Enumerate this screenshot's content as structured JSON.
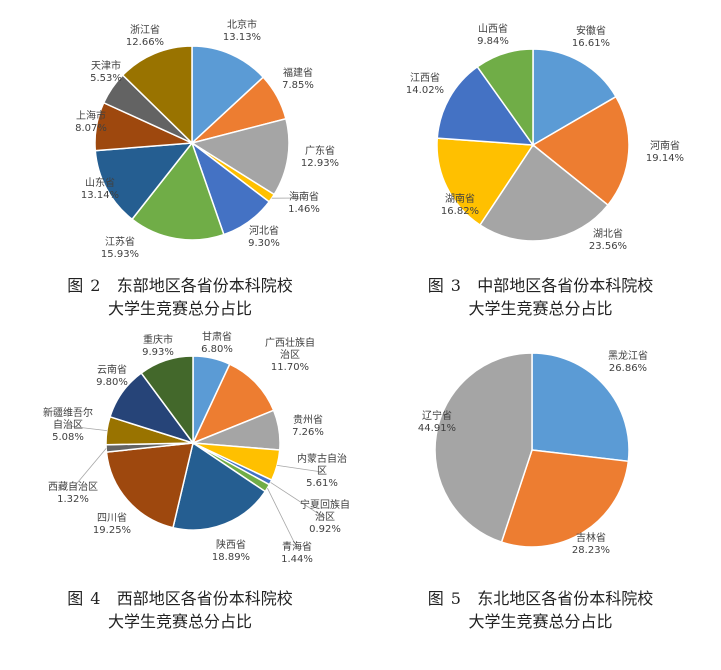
{
  "chart_data": [
    {
      "type": "pie",
      "categories": [
        "北京市",
        "福建省",
        "广东省",
        "海南省",
        "河北省",
        "江苏省",
        "山东省",
        "上海市",
        "天津市",
        "浙江省"
      ],
      "values": [
        13.13,
        7.85,
        12.93,
        1.46,
        9.3,
        15.93,
        13.14,
        8.07,
        5.53,
        12.66
      ],
      "value_labels": [
        "13.13%",
        "7.85%",
        "12.93%",
        "1.46%",
        "9.30%",
        "15.93%",
        "13.14%",
        "8.07%",
        "5.53%",
        "12.66%"
      ],
      "colors": [
        "#5B9BD5",
        "#ED7D31",
        "#A5A5A5",
        "#FFC000",
        "#4472C4",
        "#70AD47",
        "#255E91",
        "#9E480E",
        "#636363",
        "#997300"
      ],
      "caption_number": "图 2",
      "caption_line1": "东部地区各省份本科院校",
      "caption_line2": "大学生竞赛总分占比"
    },
    {
      "type": "pie",
      "categories": [
        "安徽省",
        "河南省",
        "湖北省",
        "湖南省",
        "江西省",
        "山西省"
      ],
      "values": [
        16.61,
        19.14,
        23.56,
        16.82,
        14.02,
        9.84
      ],
      "value_labels": [
        "16.61%",
        "19.14%",
        "23.56%",
        "16.82%",
        "14.02%",
        "9.84%"
      ],
      "colors": [
        "#5B9BD5",
        "#ED7D31",
        "#A5A5A5",
        "#FFC000",
        "#4472C4",
        "#70AD47"
      ],
      "caption_number": "图 3",
      "caption_line1": "中部地区各省份本科院校",
      "caption_line2": "大学生竞赛总分占比"
    },
    {
      "type": "pie",
      "categories": [
        "甘肃省",
        "广西壮族自治区",
        "贵州省",
        "内蒙古自治区",
        "宁夏回族自治区",
        "青海省",
        "陕西省",
        "四川省",
        "西藏自治区",
        "新疆维吾尔自治区",
        "云南省",
        "重庆市"
      ],
      "label_lines": [
        [
          "甘肃省"
        ],
        [
          "广西壮族自",
          "治区"
        ],
        [
          "贵州省"
        ],
        [
          "内蒙古自治",
          "区"
        ],
        [
          "宁夏回族自",
          "治区"
        ],
        [
          "青海省"
        ],
        [
          "陕西省"
        ],
        [
          "四川省"
        ],
        [
          "西藏自治区"
        ],
        [
          "新疆维吾尔",
          "自治区"
        ],
        [
          "云南省"
        ],
        [
          "重庆市"
        ]
      ],
      "values": [
        6.8,
        11.7,
        7.26,
        5.61,
        0.92,
        1.44,
        18.89,
        19.25,
        1.32,
        5.08,
        9.8,
        9.93
      ],
      "value_labels": [
        "6.80%",
        "11.70%",
        "7.26%",
        "5.61%",
        "0.92%",
        "1.44%",
        "18.89%",
        "19.25%",
        "1.32%",
        "5.08%",
        "9.80%",
        "9.93%"
      ],
      "colors": [
        "#5B9BD5",
        "#ED7D31",
        "#A5A5A5",
        "#FFC000",
        "#4472C4",
        "#70AD47",
        "#255E91",
        "#9E480E",
        "#636363",
        "#997300",
        "#264478",
        "#43682B"
      ],
      "caption_number": "图 4",
      "caption_line1": "西部地区各省份本科院校",
      "caption_line2": "大学生竞赛总分占比"
    },
    {
      "type": "pie",
      "categories": [
        "黑龙江省",
        "吉林省",
        "辽宁省"
      ],
      "values": [
        26.86,
        28.23,
        44.91
      ],
      "value_labels": [
        "26.86%",
        "28.23%",
        "44.91%"
      ],
      "colors": [
        "#5B9BD5",
        "#ED7D31",
        "#A5A5A5"
      ],
      "caption_number": "图 5",
      "caption_line1": "东北地区各省份本科院校",
      "caption_line2": "大学生竞赛总分占比"
    }
  ]
}
